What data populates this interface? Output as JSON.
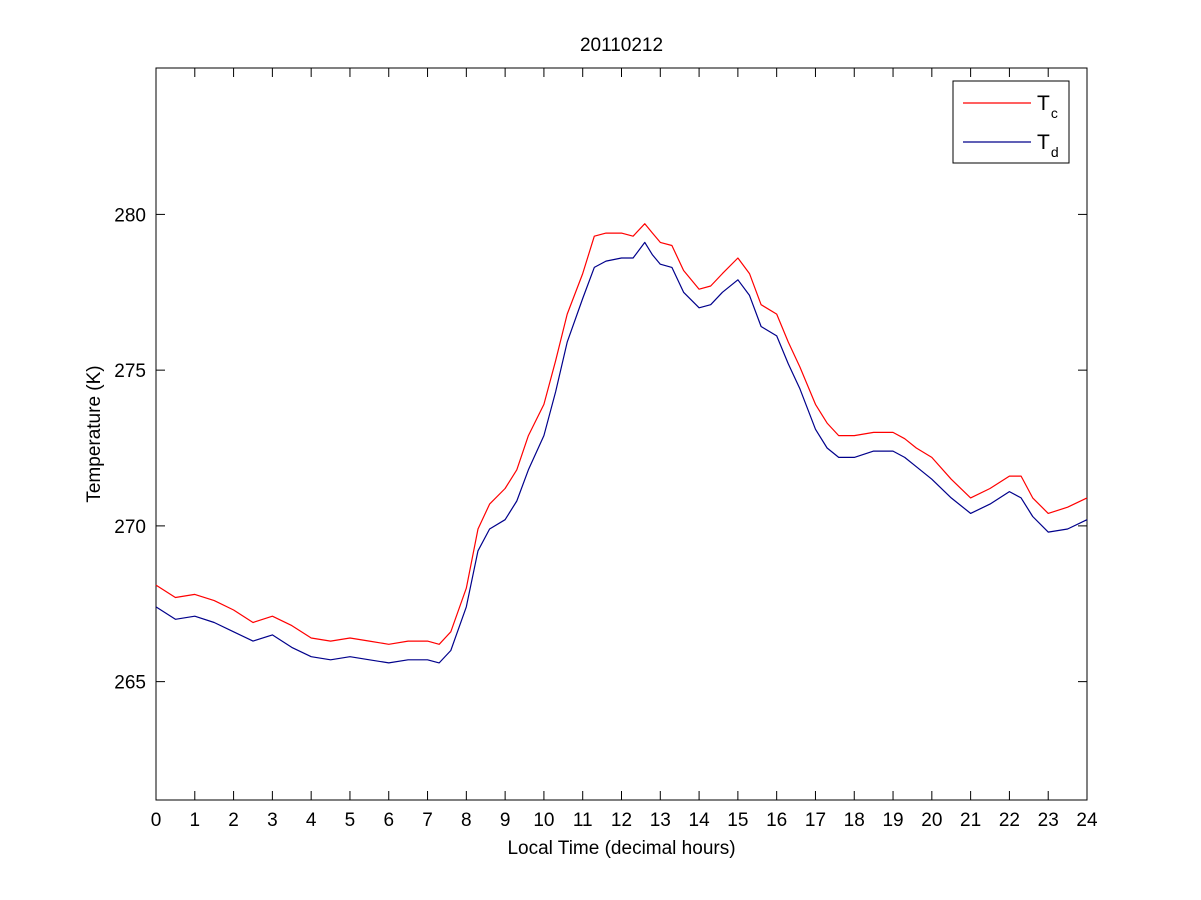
{
  "chart_data": {
    "type": "line",
    "title": "20110212",
    "xlabel": "Local Time (decimal hours)",
    "ylabel": "Temperature (K)",
    "xlim": [
      0,
      24
    ],
    "ylim": [
      261.2,
      284.7
    ],
    "x_ticks": [
      "0",
      "1",
      "2",
      "3",
      "4",
      "5",
      "6",
      "7",
      "8",
      "9",
      "10",
      "11",
      "12",
      "13",
      "14",
      "15",
      "16",
      "17",
      "18",
      "19",
      "20",
      "21",
      "22",
      "23",
      "24"
    ],
    "y_ticks": [
      "265",
      "270",
      "275",
      "280"
    ],
    "grid": false,
    "legend_position": "top-right",
    "series": [
      {
        "name": "Tc",
        "legend_main": "T",
        "legend_sub": "c",
        "color": "#ff0000",
        "x": [
          0,
          0.5,
          1,
          1.5,
          2,
          2.5,
          3,
          3.5,
          4,
          4.5,
          5,
          5.5,
          6,
          6.5,
          7,
          7.3,
          7.6,
          8,
          8.3,
          8.6,
          9,
          9.3,
          9.6,
          10,
          10.3,
          10.6,
          11,
          11.3,
          11.6,
          12,
          12.3,
          12.6,
          12.8,
          13,
          13.3,
          13.6,
          14,
          14.3,
          14.6,
          15,
          15.3,
          15.6,
          16,
          16.3,
          16.6,
          17,
          17.3,
          17.6,
          18,
          18.5,
          19,
          19.3,
          19.6,
          20,
          20.5,
          21,
          21.5,
          22,
          22.3,
          22.6,
          23,
          23.5,
          24
        ],
        "y": [
          268.1,
          267.7,
          267.8,
          267.6,
          267.3,
          266.9,
          267.1,
          266.8,
          266.4,
          266.3,
          266.4,
          266.3,
          266.2,
          266.3,
          266.3,
          266.2,
          266.6,
          268.0,
          269.9,
          270.7,
          271.2,
          271.8,
          272.9,
          273.9,
          275.3,
          276.8,
          278.1,
          279.3,
          279.4,
          279.4,
          279.3,
          279.7,
          279.4,
          279.1,
          279.0,
          278.2,
          277.6,
          277.7,
          278.1,
          278.6,
          278.1,
          277.1,
          276.8,
          275.9,
          275.1,
          273.9,
          273.3,
          272.9,
          272.9,
          273.0,
          273.0,
          272.8,
          272.5,
          272.2,
          271.5,
          270.9,
          271.2,
          271.6,
          271.6,
          270.9,
          270.4,
          270.6,
          270.9
        ]
      },
      {
        "name": "Td",
        "legend_main": "T",
        "legend_sub": "d",
        "color": "#00008b",
        "x": [
          0,
          0.5,
          1,
          1.5,
          2,
          2.5,
          3,
          3.5,
          4,
          4.5,
          5,
          5.5,
          6,
          6.5,
          7,
          7.3,
          7.6,
          8,
          8.3,
          8.6,
          9,
          9.3,
          9.6,
          10,
          10.3,
          10.6,
          11,
          11.3,
          11.6,
          12,
          12.3,
          12.6,
          12.8,
          13,
          13.3,
          13.6,
          14,
          14.3,
          14.6,
          15,
          15.3,
          15.6,
          16,
          16.3,
          16.6,
          17,
          17.3,
          17.6,
          18,
          18.5,
          19,
          19.3,
          19.6,
          20,
          20.5,
          21,
          21.5,
          22,
          22.3,
          22.6,
          23,
          23.5,
          24
        ],
        "y": [
          267.4,
          267.0,
          267.1,
          266.9,
          266.6,
          266.3,
          266.5,
          266.1,
          265.8,
          265.7,
          265.8,
          265.7,
          265.6,
          265.7,
          265.7,
          265.6,
          266.0,
          267.4,
          269.2,
          269.9,
          270.2,
          270.8,
          271.8,
          272.9,
          274.3,
          275.9,
          277.3,
          278.3,
          278.5,
          278.6,
          278.6,
          279.1,
          278.7,
          278.4,
          278.3,
          277.5,
          277.0,
          277.1,
          277.5,
          277.9,
          277.4,
          276.4,
          276.1,
          275.2,
          274.4,
          273.1,
          272.5,
          272.2,
          272.2,
          272.4,
          272.4,
          272.2,
          271.9,
          271.5,
          270.9,
          270.4,
          270.7,
          271.1,
          270.9,
          270.3,
          269.8,
          269.9,
          270.2
        ]
      }
    ]
  }
}
